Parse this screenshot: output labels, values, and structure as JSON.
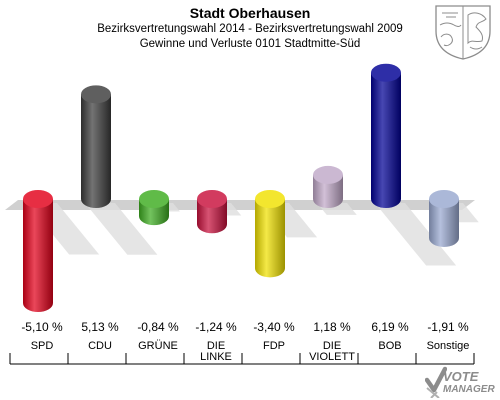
{
  "header": {
    "title": "Stadt Oberhausen",
    "subtitle1": "Bezirksvertretungswahl 2014 - Bezirksvertretungswahl 2009",
    "subtitle2": "Gewinne und Verluste 0101 Stadtmitte-Süd"
  },
  "chart_data": {
    "type": "bar",
    "categories": [
      "SPD",
      "CDU",
      "GRÜNE",
      "DIE LINKE",
      "FDP",
      "DIE VIOLETTEN",
      "BOB",
      "Sonstige"
    ],
    "category_lines": [
      [
        "SPD"
      ],
      [
        "CDU"
      ],
      [
        "GRÜNE"
      ],
      [
        "DIE",
        "LINKE"
      ],
      [
        "FDP"
      ],
      [
        "DIE",
        "VIOLETT"
      ],
      [
        "BOB"
      ],
      [
        "Sonstige"
      ]
    ],
    "values": [
      -5.1,
      5.13,
      -0.84,
      -1.24,
      -3.4,
      1.18,
      6.19,
      -1.91
    ],
    "value_labels": [
      "-5,10 %",
      "5,13 %",
      "-0,84 %",
      "-1,24 %",
      "-3,40 %",
      "1,18 %",
      "6,19 %",
      "-1,91 %"
    ],
    "colors": [
      "#e2001a",
      "#3c3c3c",
      "#3dac20",
      "#c8103c",
      "#f0e000",
      "#c0a8c8",
      "#000094",
      "#98a8d0"
    ],
    "unit": "%",
    "title": "",
    "xlabel": "",
    "ylabel": ""
  },
  "logo": {
    "line1": "VOTE",
    "line2": "MANAGER"
  }
}
